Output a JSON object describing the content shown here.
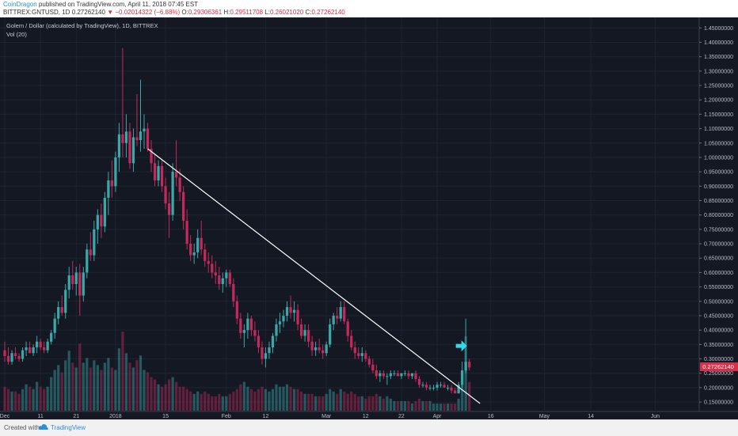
{
  "header": {
    "author": "CoinDragon",
    "published_text": " published on TradingView.com, April 11, 2018 07:45 EST",
    "symbol_line": "BITTREX:GNTUSD, 1D",
    "last": "0.27262140",
    "change_arrow": "▼",
    "change": "−0.02014322 (−6.88%)",
    "o_label": "O:",
    "o_value": "0.29306361",
    "h_label": "H:",
    "h_value": "0.29511708",
    "l_label": "L:",
    "l_value": "0.26021020",
    "c_label": "C:",
    "c_value": "0.27262140"
  },
  "legend": {
    "title": "Golem / Dollar (calculated by TradingView), 1D, BITTREX",
    "volume": "Vol (20)"
  },
  "footer": {
    "created_with": "Created with",
    "brand": "TradingView"
  },
  "colors": {
    "background": "#141823",
    "up": "#3aa8a8",
    "down": "#c22a5c",
    "trendline": "#ffffff",
    "arrow": "#33d9e8",
    "price_tag": "#d6304a"
  },
  "chart_data": {
    "type": "candlestick",
    "title": "Golem / Dollar (calculated by TradingView), 1D, BITTREX",
    "y_axis": {
      "ticks": [
        "1.45000000",
        "1.40000000",
        "1.35000000",
        "1.30000000",
        "1.25000000",
        "1.20000000",
        "1.15000000",
        "1.10000000",
        "1.05000000",
        "1.00000000",
        "0.95000000",
        "0.90000000",
        "0.85000000",
        "0.80000000",
        "0.75000000",
        "0.70000000",
        "0.65000000",
        "0.60000000",
        "0.55000000",
        "0.50000000",
        "0.45000000",
        "0.40000000",
        "0.35000000",
        "0.30000000",
        "0.25000000",
        "0.20000000",
        "0.15000000"
      ],
      "ylim": [
        0.12,
        1.47
      ],
      "last_price_label": "0.27262140"
    },
    "x_axis": {
      "ticks": [
        "Dec",
        "11",
        "21",
        "2018",
        "15",
        "Feb",
        "12",
        "Mar",
        "12",
        "22",
        "Apr",
        "16",
        "May",
        "14",
        "Jun"
      ],
      "start": "2017-12-01",
      "end": "2018-06-12"
    },
    "grid": true,
    "trendline": {
      "start": [
        "2018-01-10",
        1.03
      ],
      "end": [
        "2018-04-13",
        0.145
      ]
    },
    "arrow": {
      "date": "2018-04-08",
      "price": 0.345
    },
    "ohlc": [
      [
        "2017-12-01",
        0.33,
        0.36,
        0.29,
        0.31,
        0.1
      ],
      [
        "2017-12-02",
        0.31,
        0.34,
        0.28,
        0.29,
        0.09
      ],
      [
        "2017-12-03",
        0.29,
        0.33,
        0.28,
        0.32,
        0.08
      ],
      [
        "2017-12-04",
        0.32,
        0.34,
        0.3,
        0.31,
        0.08
      ],
      [
        "2017-12-05",
        0.31,
        0.32,
        0.29,
        0.3,
        0.07
      ],
      [
        "2017-12-06",
        0.3,
        0.34,
        0.29,
        0.33,
        0.09
      ],
      [
        "2017-12-07",
        0.33,
        0.36,
        0.31,
        0.34,
        0.11
      ],
      [
        "2017-12-08",
        0.34,
        0.36,
        0.32,
        0.32,
        0.1
      ],
      [
        "2017-12-09",
        0.32,
        0.35,
        0.31,
        0.34,
        0.09
      ],
      [
        "2017-12-10",
        0.34,
        0.38,
        0.32,
        0.36,
        0.12
      ],
      [
        "2017-12-11",
        0.36,
        0.37,
        0.33,
        0.34,
        0.1
      ],
      [
        "2017-12-12",
        0.34,
        0.36,
        0.32,
        0.33,
        0.09
      ],
      [
        "2017-12-13",
        0.33,
        0.37,
        0.32,
        0.36,
        0.1
      ],
      [
        "2017-12-14",
        0.36,
        0.4,
        0.35,
        0.39,
        0.14
      ],
      [
        "2017-12-15",
        0.39,
        0.46,
        0.37,
        0.44,
        0.17
      ],
      [
        "2017-12-16",
        0.44,
        0.5,
        0.42,
        0.48,
        0.19
      ],
      [
        "2017-12-17",
        0.48,
        0.52,
        0.45,
        0.46,
        0.16
      ],
      [
        "2017-12-18",
        0.46,
        0.56,
        0.44,
        0.54,
        0.21
      ],
      [
        "2017-12-19",
        0.54,
        0.62,
        0.51,
        0.59,
        0.25
      ],
      [
        "2017-12-20",
        0.59,
        0.64,
        0.54,
        0.56,
        0.2
      ],
      [
        "2017-12-21",
        0.56,
        0.62,
        0.52,
        0.6,
        0.18
      ],
      [
        "2017-12-22",
        0.6,
        0.63,
        0.45,
        0.52,
        0.28
      ],
      [
        "2017-12-23",
        0.52,
        0.62,
        0.5,
        0.6,
        0.2
      ],
      [
        "2017-12-24",
        0.6,
        0.7,
        0.58,
        0.68,
        0.22
      ],
      [
        "2017-12-25",
        0.68,
        0.74,
        0.64,
        0.66,
        0.18
      ],
      [
        "2017-12-26",
        0.66,
        0.78,
        0.64,
        0.75,
        0.21
      ],
      [
        "2017-12-27",
        0.75,
        0.82,
        0.7,
        0.8,
        0.19
      ],
      [
        "2017-12-28",
        0.8,
        0.84,
        0.72,
        0.76,
        0.17
      ],
      [
        "2017-12-29",
        0.76,
        0.88,
        0.74,
        0.86,
        0.2
      ],
      [
        "2017-12-30",
        0.86,
        0.95,
        0.8,
        0.92,
        0.22
      ],
      [
        "2017-12-31",
        0.92,
        0.99,
        0.86,
        0.9,
        0.18
      ],
      [
        "2018-01-01",
        0.9,
        1.02,
        0.88,
        1.0,
        0.17
      ],
      [
        "2018-01-02",
        1.0,
        1.12,
        0.95,
        1.08,
        0.26
      ],
      [
        "2018-01-03",
        1.08,
        1.38,
        1.0,
        1.05,
        0.33
      ],
      [
        "2018-01-04",
        1.05,
        1.15,
        1.0,
        1.09,
        0.24
      ],
      [
        "2018-01-05",
        1.09,
        1.12,
        0.96,
        0.98,
        0.2
      ],
      [
        "2018-01-06",
        0.98,
        1.1,
        0.95,
        1.07,
        0.18
      ],
      [
        "2018-01-07",
        1.07,
        1.22,
        1.04,
        1.06,
        0.21
      ],
      [
        "2018-01-08",
        1.06,
        1.27,
        1.02,
        1.09,
        0.23
      ],
      [
        "2018-01-09",
        1.09,
        1.15,
        1.03,
        1.1,
        0.17
      ],
      [
        "2018-01-10",
        1.1,
        1.12,
        1.02,
        1.03,
        0.16
      ],
      [
        "2018-01-11",
        1.03,
        1.06,
        0.95,
        0.98,
        0.14
      ],
      [
        "2018-01-12",
        0.98,
        1.01,
        0.9,
        0.92,
        0.13
      ],
      [
        "2018-01-13",
        0.92,
        0.99,
        0.9,
        0.97,
        0.11
      ],
      [
        "2018-01-14",
        0.97,
        0.99,
        0.88,
        0.9,
        0.1
      ],
      [
        "2018-01-15",
        0.9,
        0.93,
        0.82,
        0.84,
        0.11
      ],
      [
        "2018-01-16",
        0.84,
        0.88,
        0.72,
        0.8,
        0.13
      ],
      [
        "2018-01-17",
        0.8,
        0.98,
        0.78,
        0.95,
        0.14
      ],
      [
        "2018-01-18",
        0.95,
        1.06,
        0.9,
        0.93,
        0.12
      ],
      [
        "2018-01-19",
        0.93,
        0.96,
        0.85,
        0.88,
        0.1
      ],
      [
        "2018-01-20",
        0.88,
        0.9,
        0.75,
        0.78,
        0.1
      ],
      [
        "2018-01-21",
        0.78,
        0.82,
        0.68,
        0.7,
        0.09
      ],
      [
        "2018-01-22",
        0.7,
        0.73,
        0.64,
        0.66,
        0.08
      ],
      [
        "2018-01-23",
        0.66,
        0.7,
        0.63,
        0.67,
        0.07
      ],
      [
        "2018-01-24",
        0.67,
        0.75,
        0.65,
        0.72,
        0.08
      ],
      [
        "2018-01-25",
        0.72,
        0.78,
        0.66,
        0.68,
        0.07
      ],
      [
        "2018-01-26",
        0.68,
        0.7,
        0.62,
        0.64,
        0.08
      ],
      [
        "2018-01-27",
        0.64,
        0.67,
        0.6,
        0.63,
        0.07
      ],
      [
        "2018-01-28",
        0.63,
        0.66,
        0.58,
        0.6,
        0.06
      ],
      [
        "2018-01-29",
        0.6,
        0.64,
        0.56,
        0.59,
        0.06
      ],
      [
        "2018-01-30",
        0.59,
        0.62,
        0.54,
        0.56,
        0.07
      ],
      [
        "2018-01-31",
        0.56,
        0.6,
        0.53,
        0.58,
        0.06
      ],
      [
        "2018-02-01",
        0.58,
        0.61,
        0.55,
        0.6,
        0.06
      ],
      [
        "2018-02-02",
        0.6,
        0.61,
        0.55,
        0.56,
        0.07
      ],
      [
        "2018-02-03",
        0.56,
        0.58,
        0.48,
        0.5,
        0.08
      ],
      [
        "2018-02-04",
        0.5,
        0.52,
        0.42,
        0.44,
        0.09
      ],
      [
        "2018-02-05",
        0.44,
        0.46,
        0.37,
        0.39,
        0.11
      ],
      [
        "2018-02-06",
        0.39,
        0.42,
        0.34,
        0.4,
        0.12
      ],
      [
        "2018-02-07",
        0.4,
        0.46,
        0.37,
        0.44,
        0.1
      ],
      [
        "2018-02-08",
        0.44,
        0.45,
        0.38,
        0.4,
        0.09
      ],
      [
        "2018-02-09",
        0.4,
        0.43,
        0.36,
        0.38,
        0.08
      ],
      [
        "2018-02-10",
        0.38,
        0.4,
        0.32,
        0.34,
        0.09
      ],
      [
        "2018-02-11",
        0.34,
        0.36,
        0.28,
        0.3,
        0.1
      ],
      [
        "2018-02-12",
        0.3,
        0.34,
        0.27,
        0.32,
        0.09
      ],
      [
        "2018-02-13",
        0.32,
        0.36,
        0.3,
        0.34,
        0.08
      ],
      [
        "2018-02-14",
        0.34,
        0.39,
        0.32,
        0.38,
        0.09
      ],
      [
        "2018-02-15",
        0.38,
        0.44,
        0.36,
        0.42,
        0.11
      ],
      [
        "2018-02-16",
        0.42,
        0.46,
        0.39,
        0.43,
        0.1
      ],
      [
        "2018-02-17",
        0.43,
        0.47,
        0.41,
        0.45,
        0.1
      ],
      [
        "2018-02-18",
        0.45,
        0.5,
        0.43,
        0.48,
        0.11
      ],
      [
        "2018-02-19",
        0.48,
        0.52,
        0.44,
        0.46,
        0.1
      ],
      [
        "2018-02-20",
        0.46,
        0.5,
        0.43,
        0.47,
        0.09
      ],
      [
        "2018-02-21",
        0.47,
        0.49,
        0.4,
        0.42,
        0.09
      ],
      [
        "2018-02-22",
        0.42,
        0.44,
        0.37,
        0.38,
        0.08
      ],
      [
        "2018-02-23",
        0.38,
        0.42,
        0.36,
        0.4,
        0.07
      ],
      [
        "2018-02-24",
        0.4,
        0.42,
        0.34,
        0.36,
        0.07
      ],
      [
        "2018-02-25",
        0.36,
        0.38,
        0.31,
        0.33,
        0.07
      ],
      [
        "2018-02-26",
        0.33,
        0.36,
        0.31,
        0.34,
        0.06
      ],
      [
        "2018-02-27",
        0.34,
        0.37,
        0.32,
        0.33,
        0.06
      ],
      [
        "2018-02-28",
        0.33,
        0.35,
        0.3,
        0.32,
        0.06
      ],
      [
        "2018-03-01",
        0.32,
        0.36,
        0.31,
        0.35,
        0.07
      ],
      [
        "2018-03-02",
        0.35,
        0.44,
        0.34,
        0.42,
        0.09
      ],
      [
        "2018-03-03",
        0.42,
        0.46,
        0.4,
        0.45,
        0.08
      ],
      [
        "2018-03-04",
        0.45,
        0.48,
        0.42,
        0.44,
        0.07
      ],
      [
        "2018-03-05",
        0.44,
        0.5,
        0.43,
        0.48,
        0.09
      ],
      [
        "2018-03-06",
        0.48,
        0.5,
        0.42,
        0.43,
        0.08
      ],
      [
        "2018-03-07",
        0.43,
        0.44,
        0.36,
        0.38,
        0.07
      ],
      [
        "2018-03-08",
        0.38,
        0.4,
        0.33,
        0.34,
        0.08
      ],
      [
        "2018-03-09",
        0.34,
        0.36,
        0.3,
        0.32,
        0.07
      ],
      [
        "2018-03-10",
        0.32,
        0.34,
        0.3,
        0.31,
        0.06
      ],
      [
        "2018-03-11",
        0.31,
        0.34,
        0.29,
        0.32,
        0.06
      ],
      [
        "2018-03-12",
        0.32,
        0.33,
        0.29,
        0.3,
        0.05
      ],
      [
        "2018-03-13",
        0.3,
        0.31,
        0.27,
        0.28,
        0.06
      ],
      [
        "2018-03-14",
        0.28,
        0.3,
        0.25,
        0.26,
        0.06
      ],
      [
        "2018-03-15",
        0.26,
        0.28,
        0.23,
        0.24,
        0.07
      ],
      [
        "2018-03-16",
        0.24,
        0.26,
        0.22,
        0.25,
        0.06
      ],
      [
        "2018-03-17",
        0.25,
        0.26,
        0.23,
        0.24,
        0.05
      ],
      [
        "2018-03-18",
        0.24,
        0.25,
        0.21,
        0.24,
        0.06
      ],
      [
        "2018-03-19",
        0.24,
        0.26,
        0.23,
        0.25,
        0.05
      ],
      [
        "2018-03-20",
        0.25,
        0.26,
        0.24,
        0.25,
        0.04
      ],
      [
        "2018-03-21",
        0.25,
        0.26,
        0.24,
        0.24,
        0.04
      ],
      [
        "2018-03-22",
        0.24,
        0.25,
        0.23,
        0.25,
        0.04
      ],
      [
        "2018-03-23",
        0.25,
        0.26,
        0.24,
        0.25,
        0.04
      ],
      [
        "2018-03-24",
        0.25,
        0.26,
        0.23,
        0.24,
        0.04
      ],
      [
        "2018-03-25",
        0.24,
        0.25,
        0.23,
        0.25,
        0.03
      ],
      [
        "2018-03-26",
        0.25,
        0.26,
        0.22,
        0.23,
        0.04
      ],
      [
        "2018-03-27",
        0.23,
        0.24,
        0.2,
        0.21,
        0.05
      ],
      [
        "2018-03-28",
        0.21,
        0.22,
        0.2,
        0.21,
        0.04
      ],
      [
        "2018-03-29",
        0.21,
        0.22,
        0.19,
        0.2,
        0.04
      ],
      [
        "2018-03-30",
        0.2,
        0.21,
        0.19,
        0.2,
        0.04
      ],
      [
        "2018-03-31",
        0.2,
        0.21,
        0.19,
        0.2,
        0.03
      ],
      [
        "2018-04-01",
        0.2,
        0.22,
        0.19,
        0.21,
        0.03
      ],
      [
        "2018-04-02",
        0.21,
        0.22,
        0.2,
        0.21,
        0.03
      ],
      [
        "2018-04-03",
        0.21,
        0.22,
        0.2,
        0.2,
        0.03
      ],
      [
        "2018-04-04",
        0.2,
        0.21,
        0.19,
        0.2,
        0.03
      ],
      [
        "2018-04-05",
        0.2,
        0.21,
        0.18,
        0.19,
        0.03
      ],
      [
        "2018-04-06",
        0.19,
        0.2,
        0.18,
        0.18,
        0.03
      ],
      [
        "2018-04-07",
        0.18,
        0.22,
        0.18,
        0.21,
        0.05
      ],
      [
        "2018-04-08",
        0.21,
        0.29,
        0.2,
        0.26,
        0.11
      ],
      [
        "2018-04-09",
        0.26,
        0.44,
        0.25,
        0.29,
        0.31
      ],
      [
        "2018-04-10",
        0.29,
        0.3,
        0.26,
        0.27,
        0.12
      ]
    ]
  }
}
